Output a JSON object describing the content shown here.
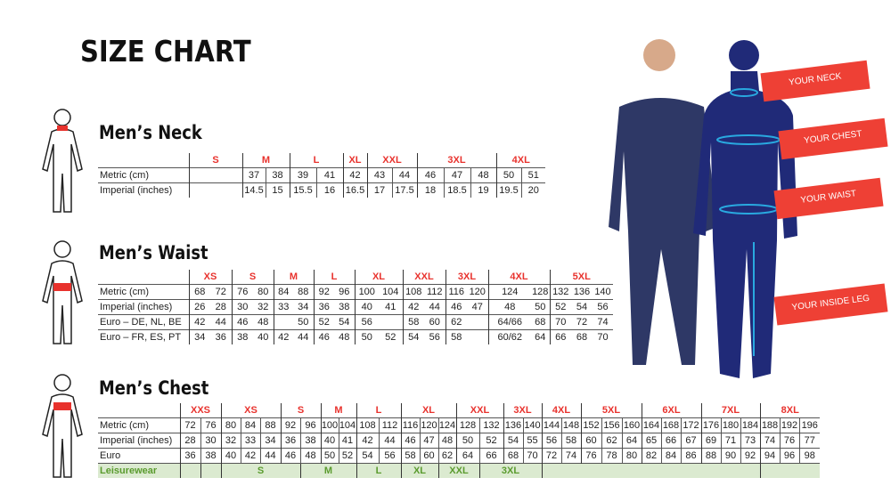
{
  "title": "SIZE CHART",
  "colors": {
    "size_label": "#e8322d",
    "leisure_bg": "#dbead0",
    "leisure_text": "#5a9b2e",
    "tag_bg": "#ee4035",
    "garment": "#1f2a6b",
    "arrow": "#29a9e0"
  },
  "neck": {
    "title": "Men’s Neck",
    "headers": [
      {
        "label": "S",
        "span": 1
      },
      {
        "label": "M",
        "span": 2
      },
      {
        "label": "L",
        "span": 2
      },
      {
        "label": "XL",
        "span": 1
      },
      {
        "label": "XXL",
        "span": 2
      },
      {
        "label": "3XL",
        "span": 3
      },
      {
        "label": "4XL",
        "span": 2
      }
    ],
    "rows": [
      {
        "label": "Metric (cm)",
        "cells": [
          "",
          "37",
          "38",
          "39",
          "41",
          "42",
          "43",
          "44",
          "46",
          "47",
          "48",
          "50",
          "51"
        ]
      },
      {
        "label": "Imperial (inches)",
        "cells": [
          "",
          "14.5",
          "15",
          "15.5",
          "16",
          "16.5",
          "17",
          "17.5",
          "18",
          "18.5",
          "19",
          "19.5",
          "20"
        ]
      }
    ]
  },
  "waist": {
    "title": "Men’s Waist",
    "headers": [
      {
        "label": "XS",
        "span": 2
      },
      {
        "label": "S",
        "span": 2
      },
      {
        "label": "M",
        "span": 2
      },
      {
        "label": "L",
        "span": 2
      },
      {
        "label": "XL",
        "span": 2
      },
      {
        "label": "XXL",
        "span": 2
      },
      {
        "label": "3XL",
        "span": 2
      },
      {
        "label": "4XL",
        "span": 2
      },
      {
        "label": "5XL",
        "span": 3
      }
    ],
    "rows": [
      {
        "label": "Metric (cm)",
        "cells": [
          "68",
          "72",
          "76",
          "80",
          "84",
          "88",
          "92",
          "96",
          "100",
          "104",
          "108",
          "112",
          "116",
          "120",
          "124",
          "128",
          "132",
          "136",
          "140"
        ]
      },
      {
        "label": "Imperial (inches)",
        "cells": [
          "26",
          "28",
          "30",
          "32",
          "33",
          "34",
          "36",
          "38",
          "40",
          "41",
          "42",
          "44",
          "46",
          "47",
          "48",
          "50",
          "52",
          "54",
          "56"
        ]
      },
      {
        "label": "Euro – DE, NL, BE",
        "cells": [
          "42",
          "44",
          "46",
          "48",
          "",
          "50",
          "52",
          "54",
          "56",
          "",
          "58",
          "60",
          "62",
          "",
          "64/66",
          "68",
          "70",
          "72",
          "74"
        ]
      },
      {
        "label": "Euro – FR, ES, PT",
        "cells": [
          "34",
          "36",
          "38",
          "40",
          "42",
          "44",
          "46",
          "48",
          "50",
          "52",
          "54",
          "56",
          "58",
          "",
          "60/62",
          "64",
          "66",
          "68",
          "70"
        ]
      }
    ]
  },
  "chest": {
    "title": "Men’s Chest",
    "headers": [
      {
        "label": "XXS",
        "span": 2
      },
      {
        "label": "XS",
        "span": 3
      },
      {
        "label": "S",
        "span": 2
      },
      {
        "label": "M",
        "span": 2
      },
      {
        "label": "L",
        "span": 2
      },
      {
        "label": "XL",
        "span": 3
      },
      {
        "label": "XXL",
        "span": 2
      },
      {
        "label": "3XL",
        "span": 2
      },
      {
        "label": "4XL",
        "span": 2
      },
      {
        "label": "5XL",
        "span": 3
      },
      {
        "label": "6XL",
        "span": 3
      },
      {
        "label": "7XL",
        "span": 3
      },
      {
        "label": "8XL",
        "span": 3
      }
    ],
    "rows": [
      {
        "label": "Metric (cm)",
        "cells": [
          "72",
          "76",
          "80",
          "84",
          "88",
          "92",
          "96",
          "100",
          "104",
          "108",
          "112",
          "116",
          "120",
          "124",
          "128",
          "132",
          "136",
          "140",
          "144",
          "148",
          "152",
          "156",
          "160",
          "164",
          "168",
          "172",
          "176",
          "180",
          "184",
          "188",
          "192",
          "196"
        ]
      },
      {
        "label": "Imperial (inches)",
        "cells": [
          "28",
          "30",
          "32",
          "33",
          "34",
          "36",
          "38",
          "40",
          "41",
          "42",
          "44",
          "46",
          "47",
          "48",
          "50",
          "52",
          "54",
          "55",
          "56",
          "58",
          "60",
          "62",
          "64",
          "65",
          "66",
          "67",
          "69",
          "71",
          "73",
          "74",
          "76",
          "77"
        ]
      },
      {
        "label": "Euro",
        "cells": [
          "36",
          "38",
          "40",
          "42",
          "44",
          "46",
          "48",
          "50",
          "52",
          "54",
          "56",
          "58",
          "60",
          "62",
          "64",
          "66",
          "68",
          "70",
          "72",
          "74",
          "76",
          "78",
          "80",
          "82",
          "84",
          "86",
          "88",
          "90",
          "92",
          "94",
          "96",
          "98"
        ]
      }
    ],
    "leisurewear": {
      "label": "Leisurewear",
      "cells": [
        {
          "text": "",
          "span": 1
        },
        {
          "text": "",
          "span": 1
        },
        {
          "text": "S",
          "span": 4
        },
        {
          "text": "M",
          "span": 3
        },
        {
          "text": "L",
          "span": 2
        },
        {
          "text": "XL",
          "span": 2
        },
        {
          "text": "XXL",
          "span": 2
        },
        {
          "text": "3XL",
          "span": 3
        },
        {
          "text": "",
          "span": 11
        },
        {
          "text": "",
          "span": 3
        }
      ]
    }
  },
  "tags": [
    "YOUR NECK",
    "YOUR CHEST",
    "YOUR WAIST",
    "YOUR INSIDE LEG"
  ]
}
